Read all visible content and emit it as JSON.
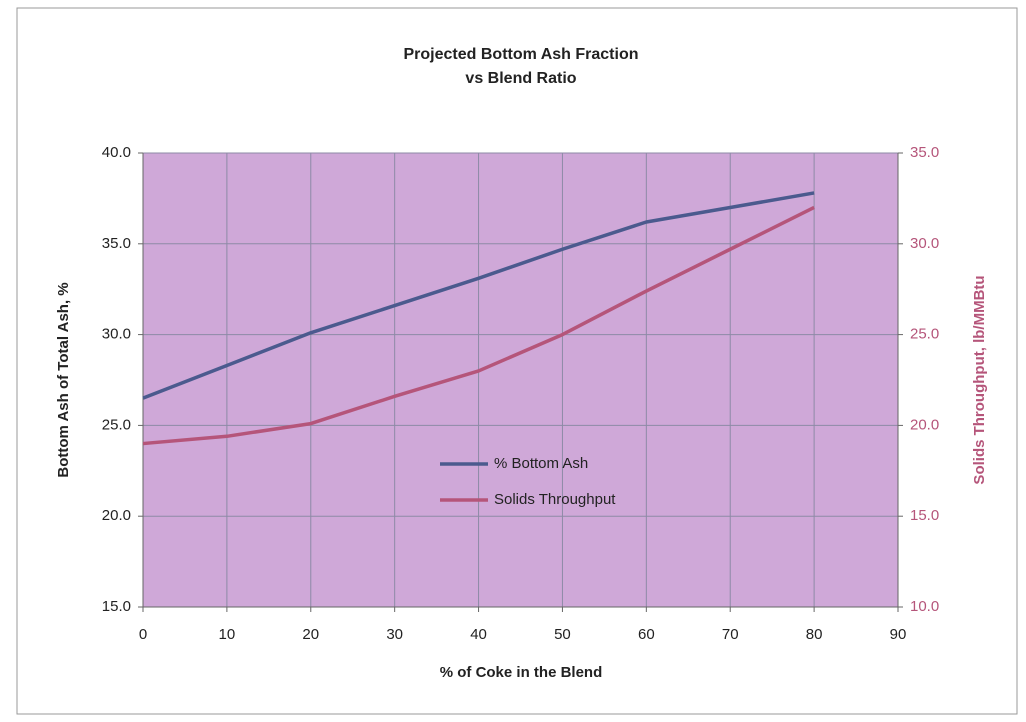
{
  "chart_data": {
    "type": "line",
    "title": [
      "Projected Bottom Ash Fraction",
      "vs Blend Ratio"
    ],
    "x_label": "% of Coke in the Blend",
    "y_label": "Bottom Ash of Total Ash, %",
    "y2_label": "Solids Throughput, lb/MMBtu",
    "x": [
      0,
      10,
      20,
      30,
      40,
      50,
      60,
      70,
      80
    ],
    "series": [
      {
        "name": "% Bottom Ash",
        "color": "#4b5a8e",
        "values": [
          26.5,
          28.3,
          30.1,
          31.6,
          33.1,
          34.7,
          36.2,
          37.0,
          37.8
        ]
      },
      {
        "name": "Solids Throughput",
        "color": "#b5557a",
        "axis": "y2",
        "values": [
          19.0,
          19.4,
          20.1,
          21.6,
          23.0,
          25.0,
          27.4,
          29.7,
          32.0
        ]
      }
    ],
    "xlim": [
      0,
      90
    ],
    "xticks": [
      0,
      10,
      20,
      30,
      40,
      50,
      60,
      70,
      80,
      90
    ],
    "ylim": [
      15,
      40
    ],
    "yticks": [
      {
        "value": 15,
        "label": "15.0"
      },
      {
        "value": 20,
        "label": "20.0"
      },
      {
        "value": 25,
        "label": "25.0"
      },
      {
        "value": 30,
        "label": "30.0"
      },
      {
        "value": 35,
        "label": "35.0"
      },
      {
        "value": 40,
        "label": "40.0"
      }
    ],
    "y2lim": [
      10,
      35
    ],
    "y2ticks": [
      {
        "value": 10,
        "label": "10.0"
      },
      {
        "value": 15,
        "label": "15.0"
      },
      {
        "value": 20,
        "label": "20.0"
      },
      {
        "value": 25,
        "label": "25.0"
      },
      {
        "value": 30,
        "label": "30.0"
      },
      {
        "value": 35,
        "label": "35.0"
      }
    ],
    "grid": true
  }
}
